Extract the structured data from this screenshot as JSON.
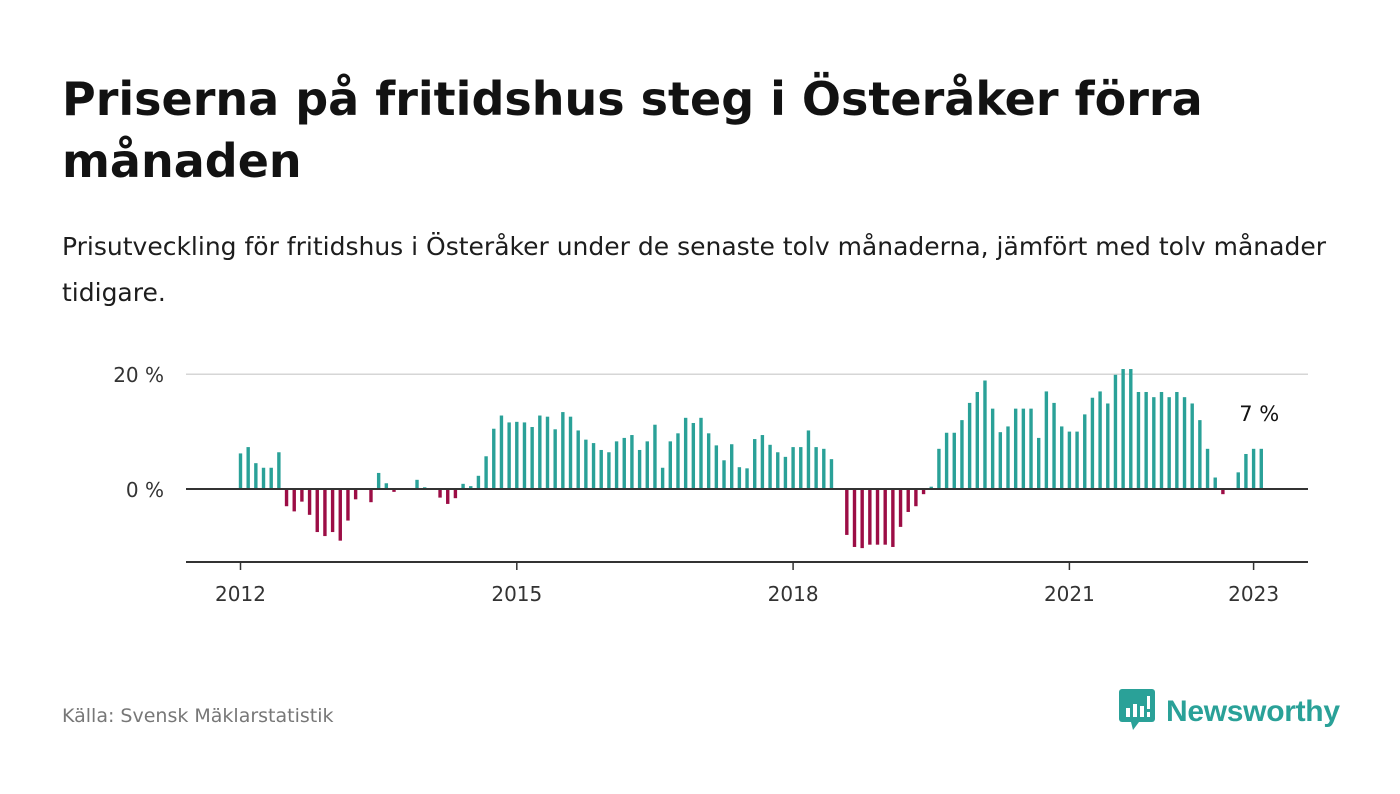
{
  "title": "Priserna på fritidshus steg i Österåker förra månaden",
  "subtitle": "Prisutveckling för fritidshus i Österåker under de senaste tolv månaderna, jämfört med tolv månader tidigare.",
  "source": "Källa: Svensk Mäklarstatistik",
  "logo": {
    "name": "Newsworthy",
    "icon": "newsworthy-chart-icon"
  },
  "colors": {
    "positive": "#2aa198",
    "negative": "#9c0d45",
    "zero_line": "#333333",
    "grid": "#d6d6d6"
  },
  "chart_data": {
    "type": "bar",
    "title": "",
    "xlabel": "",
    "ylabel": "",
    "start": "2012-01",
    "frequency": "monthly",
    "ylim": [
      -13,
      22
    ],
    "y_ticks": [
      {
        "value": 0,
        "label": "0 %"
      },
      {
        "value": 20,
        "label": "20 %"
      }
    ],
    "x_ticks": [
      {
        "year": 2012,
        "label": "2012"
      },
      {
        "year": 2015,
        "label": "2015"
      },
      {
        "year": 2018,
        "label": "2018"
      },
      {
        "year": 2021,
        "label": "2021"
      },
      {
        "year": 2023,
        "label": "2023"
      }
    ],
    "annotation": {
      "text": "7 %"
    },
    "grid": true,
    "series": [
      {
        "values": [
          6.2,
          7.3,
          4.5,
          3.7,
          3.7,
          6.4,
          -3.0,
          -3.9,
          -2.2,
          -4.5,
          -7.5,
          -8.2,
          -7.5,
          -9.0,
          -5.5,
          -1.8,
          0,
          -2.3,
          2.8,
          1.0,
          -0.5,
          0,
          0,
          1.6,
          0.3,
          0,
          -1.5,
          -2.6,
          -1.6,
          0.9,
          0.5,
          2.3,
          5.7,
          10.5,
          12.8,
          11.6,
          11.7,
          11.6,
          10.8,
          12.8,
          12.6,
          10.4,
          13.4,
          12.6,
          10.2,
          8.6,
          8.0,
          6.8,
          6.4,
          8.3,
          8.9,
          9.4,
          6.8,
          8.3,
          11.2,
          3.7,
          8.3,
          9.7,
          12.4,
          11.5,
          12.4,
          9.7,
          7.6,
          5.0,
          7.8,
          3.8,
          3.6,
          8.7,
          9.4,
          7.7,
          6.4,
          5.6,
          7.3,
          7.3,
          10.2,
          7.3,
          7.0,
          5.2,
          0,
          -8.0,
          -10.1,
          -10.3,
          -9.7,
          -9.7,
          -9.7,
          -10.1,
          -6.6,
          -4.0,
          -3.0,
          -0.9,
          0.4,
          7.0,
          9.8,
          9.8,
          12.0,
          15.0,
          16.9,
          18.9,
          14.0,
          9.9,
          10.9,
          14.0,
          14.0,
          14.0,
          8.9,
          17.0,
          15.0,
          10.9,
          10.0,
          10.0,
          13.0,
          15.9,
          17.0,
          14.9,
          19.9,
          20.9,
          20.9,
          16.9,
          16.9,
          16.0,
          16.9,
          16.0,
          16.9,
          16.0,
          14.9,
          12.0,
          7.0,
          2.0,
          -0.9,
          0,
          2.9,
          6.1,
          7.0,
          7.0
        ]
      }
    ]
  }
}
